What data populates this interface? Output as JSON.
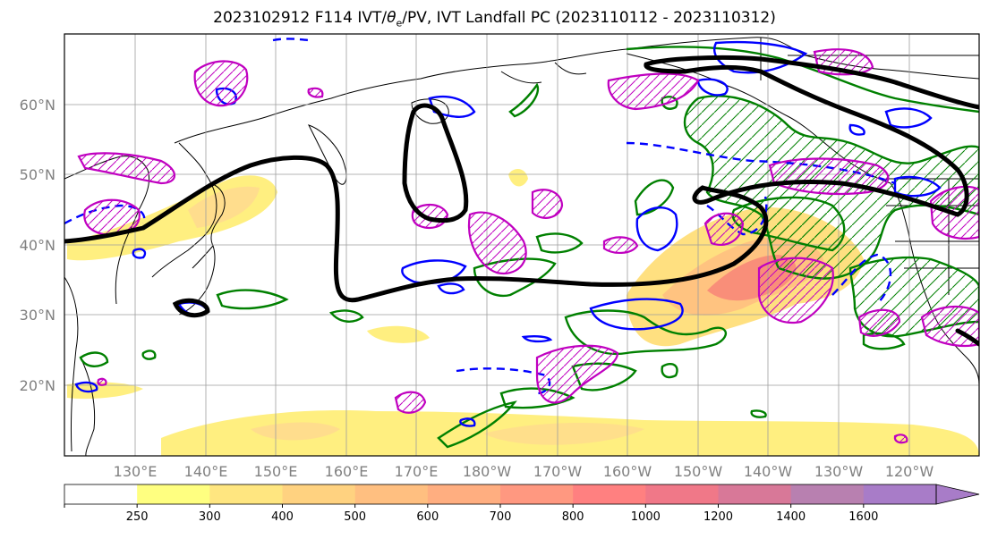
{
  "title_text": "2023102912 F114 IVT/",
  "title_theta": "θ",
  "title_sub": "e",
  "title_rest": "/PV, IVT Landfall PC (2023110112 - 2023110312)",
  "lat_labels": [
    "60°N",
    "50°N",
    "40°N",
    "30°N",
    "20°N"
  ],
  "lon_labels": [
    "130°E",
    "140°E",
    "150°E",
    "160°E",
    "170°E",
    "180°W",
    "170°W",
    "160°W",
    "150°W",
    "140°W",
    "130°W",
    "120°W"
  ],
  "colorbar": {
    "ticks": [
      "250",
      "300",
      "400",
      "500",
      "600",
      "700",
      "800",
      "1000",
      "1200",
      "1400",
      "1600"
    ],
    "colors": [
      "#ffffff",
      "#ffff80",
      "#ffe680",
      "#ffd280",
      "#ffbf80",
      "#ffae80",
      "#ff9880",
      "#ff8080",
      "#f07888",
      "#d87898",
      "#b880b0",
      "#a87cc8"
    ]
  },
  "colors": {
    "ivt_fill_low": "#ffef7a",
    "ivt_fill_mid": "#ffc684",
    "ivt_fill_high": "#f98a78",
    "pc_contour": "#000000",
    "theta_contour": "#008000",
    "pv_positive": "#0000ff",
    "pv_hatch": "#c000c0"
  }
}
